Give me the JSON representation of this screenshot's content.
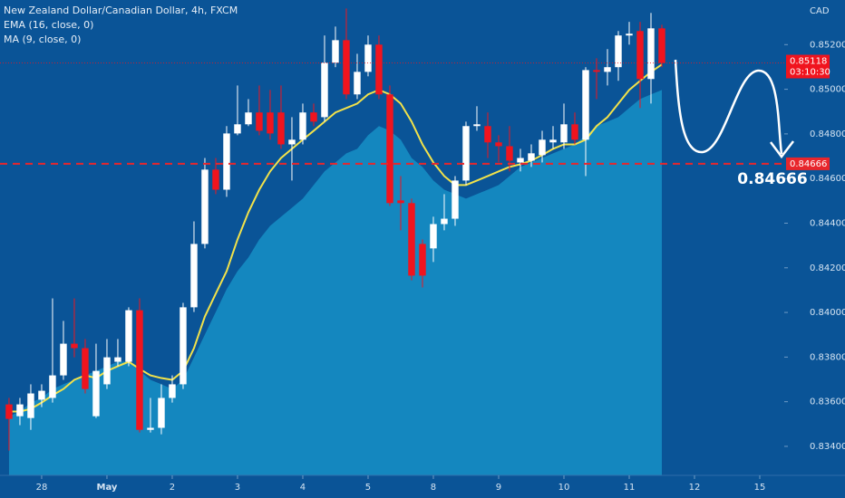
{
  "chart_data": {
    "type": "candlestick",
    "title": "New Zealand Dollar/Canadian Dollar, 4h, FXCM",
    "currency": "CAD",
    "up_color": "#ffffff",
    "down_color": "#f0141e",
    "x": [
      0,
      1,
      2,
      3,
      4,
      5,
      6,
      7,
      8,
      9,
      10,
      11,
      12,
      13,
      14,
      15,
      16,
      17,
      18,
      19,
      20,
      21,
      22,
      23,
      24,
      25,
      26,
      27,
      28,
      29,
      30,
      31,
      32,
      33,
      34,
      35,
      36,
      37,
      38,
      39,
      40,
      41,
      42,
      43,
      44,
      45,
      46,
      47,
      48,
      49,
      50,
      51,
      52,
      53,
      54,
      55,
      56,
      57,
      58,
      59,
      60
    ],
    "open": [
      0.83588,
      0.83535,
      0.83527,
      0.83609,
      0.83617,
      0.83718,
      0.8386,
      0.8384,
      0.83535,
      0.83678,
      0.83779,
      0.83779,
      0.8401,
      0.83474,
      0.83483,
      0.83617,
      0.83678,
      0.84023,
      0.84307,
      0.8464,
      0.8455,
      0.84802,
      0.84843,
      0.84896,
      0.84896,
      0.84896,
      0.84753,
      0.84774,
      0.84896,
      0.84875,
      0.85119,
      0.8522,
      0.84977,
      0.85078,
      0.852,
      0.84977,
      0.84502,
      0.8449,
      0.84307,
      0.84287,
      0.84396,
      0.8442,
      0.84591,
      0.84835,
      0.84835,
      0.84762,
      0.84745,
      0.84672,
      0.8468,
      0.84705,
      0.84762,
      0.84762,
      0.84843,
      0.84774,
      0.85086,
      0.85078,
      0.85099,
      0.85241,
      0.85261,
      0.85046,
      0.85273
    ],
    "high": [
      0.83617,
      0.83617,
      0.83678,
      0.83678,
      0.84063,
      0.83962,
      0.84063,
      0.83881,
      0.8386,
      0.83881,
      0.83881,
      0.84023,
      0.84063,
      0.83617,
      0.83678,
      0.83718,
      0.84043,
      0.84408,
      0.84692,
      0.84692,
      0.84835,
      0.85017,
      0.84956,
      0.85017,
      0.84997,
      0.85017,
      0.84875,
      0.84936,
      0.84936,
      0.85241,
      0.85281,
      0.85362,
      0.85159,
      0.85241,
      0.85241,
      0.85017,
      0.84611,
      0.8451,
      0.84327,
      0.84429,
      0.8453,
      0.84611,
      0.84855,
      0.84924,
      0.84896,
      0.84794,
      0.84835,
      0.84733,
      0.84753,
      0.84814,
      0.84835,
      0.84936,
      0.84896,
      0.85099,
      0.85139,
      0.8518,
      0.85261,
      0.85302,
      0.85302,
      0.85342,
      0.85289
    ],
    "low": [
      0.83381,
      0.83495,
      0.83474,
      0.83576,
      0.83596,
      0.83698,
      0.83799,
      0.83637,
      0.83527,
      0.83657,
      0.83759,
      0.83759,
      0.83462,
      0.83462,
      0.83454,
      0.83596,
      0.83657,
      0.84002,
      0.84287,
      0.8453,
      0.84518,
      0.84794,
      0.84835,
      0.84794,
      0.84774,
      0.84733,
      0.84591,
      0.84753,
      0.84835,
      0.84855,
      0.85099,
      0.84956,
      0.84956,
      0.85058,
      0.84956,
      0.84477,
      0.84368,
      0.84144,
      0.84112,
      0.84226,
      0.84368,
      0.84388,
      0.84571,
      0.84814,
      0.84692,
      0.84672,
      0.84632,
      0.84632,
      0.84652,
      0.84672,
      0.84733,
      0.84733,
      0.84753,
      0.84611,
      0.84956,
      0.85017,
      0.85038,
      0.852,
      0.84916,
      0.84936,
      0.85099
    ],
    "close": [
      0.83523,
      0.83588,
      0.83637,
      0.83649,
      0.83718,
      0.8386,
      0.8384,
      0.83657,
      0.83738,
      0.83799,
      0.83799,
      0.8401,
      0.83474,
      0.83483,
      0.83617,
      0.83678,
      0.84023,
      0.84307,
      0.8464,
      0.8455,
      0.84802,
      0.84843,
      0.84896,
      0.84814,
      0.84802,
      0.84753,
      0.84774,
      0.84896,
      0.84855,
      0.85119,
      0.8522,
      0.84977,
      0.85078,
      0.852,
      0.84977,
      0.8449,
      0.8449,
      0.84165,
      0.84165,
      0.84396,
      0.8442,
      0.84591,
      0.84835,
      0.84843,
      0.84762,
      0.84745,
      0.8468,
      0.84692,
      0.84713,
      0.84774,
      0.84774,
      0.84843,
      0.84774,
      0.85086,
      0.85078,
      0.85099,
      0.85241,
      0.85249,
      0.85046,
      0.85273,
      0.85118
    ],
    "indicators": [
      {
        "name": "EMA (16, close, 0)",
        "style": "line",
        "color": "#f2e24a",
        "values": [
          0.83556,
          0.83556,
          0.83568,
          0.83596,
          0.83629,
          0.83657,
          0.83698,
          0.83718,
          0.83706,
          0.83738,
          0.83759,
          0.83779,
          0.83747,
          0.83718,
          0.83706,
          0.83698,
          0.83738,
          0.8384,
          0.83982,
          0.84084,
          0.84185,
          0.84327,
          0.84449,
          0.8455,
          0.84632,
          0.84692,
          0.84733,
          0.84774,
          0.84814,
          0.84855,
          0.84896,
          0.84916,
          0.84936,
          0.84977,
          0.84997,
          0.84977,
          0.84936,
          0.84855,
          0.84753,
          0.84672,
          0.84611,
          0.84571,
          0.84571,
          0.84591,
          0.84611,
          0.84632,
          0.84652,
          0.84664,
          0.8468,
          0.84705,
          0.84733,
          0.84753,
          0.84753,
          0.84774,
          0.84835,
          0.84875,
          0.84936,
          0.84997,
          0.85038,
          0.85078,
          0.85111
        ]
      },
      {
        "name": "MA (9, close, 0)",
        "style": "area",
        "color": "#1690c6",
        "values": [
          0.83535,
          0.83556,
          0.83596,
          0.83617,
          0.83657,
          0.83678,
          0.83698,
          0.83718,
          0.83738,
          0.83759,
          0.83779,
          0.83779,
          0.83738,
          0.83698,
          0.83678,
          0.83657,
          0.83698,
          0.83799,
          0.83901,
          0.84002,
          0.84104,
          0.84185,
          0.84246,
          0.84327,
          0.84388,
          0.84429,
          0.84469,
          0.8451,
          0.84571,
          0.84632,
          0.84672,
          0.84713,
          0.84733,
          0.84794,
          0.84835,
          0.84814,
          0.84774,
          0.84692,
          0.84652,
          0.84591,
          0.8455,
          0.8453,
          0.8451,
          0.8453,
          0.8455,
          0.84571,
          0.84611,
          0.84652,
          0.84672,
          0.84692,
          0.84713,
          0.84733,
          0.84753,
          0.84794,
          0.84835,
          0.84855,
          0.84875,
          0.84916,
          0.84956,
          0.84977,
          0.84997
        ]
      }
    ],
    "last_price": 0.85118,
    "countdown": "03:10:30",
    "target": 0.84666,
    "target_color": "#e8262c",
    "xlim": [
      -0.83,
      71.25
    ],
    "xticks": [
      {
        "value": 3,
        "label": "28"
      },
      {
        "value": 9,
        "label": "May"
      },
      {
        "value": 15,
        "label": "2"
      },
      {
        "value": 21,
        "label": "3"
      },
      {
        "value": 27,
        "label": "4"
      },
      {
        "value": 33,
        "label": "5"
      },
      {
        "value": 39,
        "label": "8"
      },
      {
        "value": 45,
        "label": "9"
      },
      {
        "value": 51,
        "label": "10"
      },
      {
        "value": 57,
        "label": "11"
      },
      {
        "value": 63,
        "label": "12"
      },
      {
        "value": 69,
        "label": "15"
      }
    ],
    "ylim": [
      0.8327,
      0.854
    ],
    "yticks": [
      {
        "value": 0.834,
        "label": "0.83400"
      },
      {
        "value": 0.836,
        "label": "0.83600"
      },
      {
        "value": 0.838,
        "label": "0.83800"
      },
      {
        "value": 0.84,
        "label": "0.84000"
      },
      {
        "value": 0.842,
        "label": "0.84200"
      },
      {
        "value": 0.844,
        "label": "0.84400"
      },
      {
        "value": 0.846,
        "label": "0.84600"
      },
      {
        "value": 0.848,
        "label": "0.84800"
      },
      {
        "value": 0.85,
        "label": "0.85000"
      },
      {
        "value": 0.852,
        "label": "0.85200"
      }
    ]
  }
}
